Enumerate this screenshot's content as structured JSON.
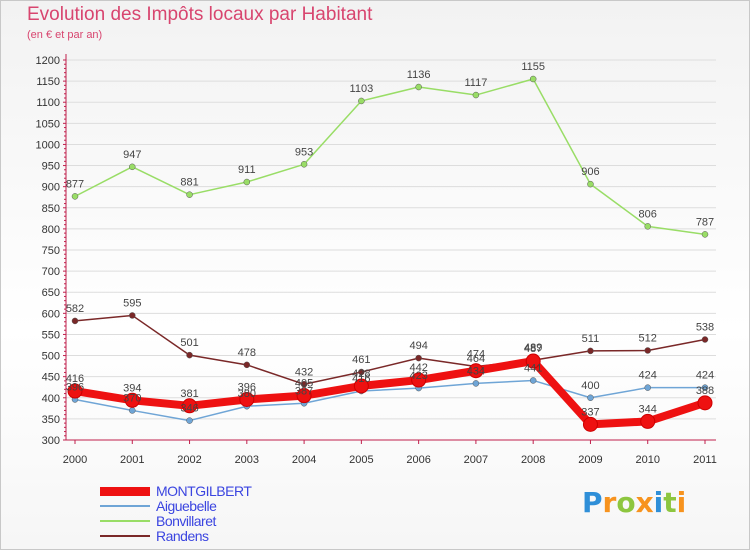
{
  "header": {
    "title": "Evolution des Impôts locaux par Habitant",
    "subtitle": "(en € et par an)"
  },
  "colors": {
    "title": "#d8456f",
    "axis": "#c01f4c",
    "grid": "#dddddd",
    "legend_text": "#3b45e0",
    "MONTGILBERT": "#ee1111",
    "Aiguebelle": "#6fa5d6",
    "Bonvillaret": "#99dd66",
    "Randens": "#7a2828"
  },
  "logo": {
    "text": "Proxiti",
    "letters": [
      "P",
      "r",
      "o",
      "x",
      "i",
      "t",
      "i"
    ],
    "letter_colors": [
      "#2f8fd8",
      "#f7931e",
      "#8dc63f",
      "#f7931e",
      "#2f8fd8",
      "#8dc63f",
      "#f7931e"
    ]
  },
  "chart_data": {
    "type": "line",
    "title": "Evolution des Impôts locaux par Habitant",
    "subtitle": "(en € et par an)",
    "xlabel": "",
    "ylabel": "",
    "x": [
      2000,
      2001,
      2002,
      2003,
      2004,
      2005,
      2006,
      2007,
      2008,
      2009,
      2010,
      2011
    ],
    "ylim": [
      300,
      1200
    ],
    "yticks": [
      300,
      350,
      400,
      450,
      500,
      550,
      600,
      650,
      700,
      750,
      800,
      850,
      900,
      950,
      1000,
      1050,
      1100,
      1150,
      1200
    ],
    "grid": "horizontal",
    "legend_position": "bottom-left",
    "series": [
      {
        "name": "MONTGILBERT",
        "values": [
          416,
          394,
          381,
          396,
          405,
          428,
          442,
          464,
          487,
          337,
          344,
          388
        ],
        "labels": [
          "416",
          "394",
          "381",
          "396",
          "405",
          "428",
          "442",
          "464",
          "487",
          "337",
          "344",
          "388"
        ]
      },
      {
        "name": "Aiguebelle",
        "values": [
          396,
          370,
          346,
          380,
          387,
          416,
          423,
          434,
          441,
          400,
          424,
          424
        ],
        "labels": [
          "396",
          "370",
          "346",
          "380",
          "387",
          "416",
          "423",
          "434",
          "441",
          "400",
          "424",
          "424"
        ]
      },
      {
        "name": "Bonvillaret",
        "values": [
          877,
          947,
          881,
          911,
          953,
          1103,
          1136,
          1117,
          1155,
          906,
          806,
          787
        ],
        "labels": [
          "877",
          "947",
          "881",
          "911",
          "953",
          "1103",
          "1136",
          "1117",
          "1155",
          "906",
          "806",
          "787"
        ]
      },
      {
        "name": "Randens",
        "values": [
          582,
          595,
          501,
          478,
          432,
          461,
          494,
          474,
          489,
          511,
          512,
          538
        ],
        "labels": [
          "582",
          "595",
          "501",
          "478",
          "432",
          "461",
          "494",
          "474",
          "489",
          "511",
          "512",
          "538"
        ]
      }
    ]
  }
}
